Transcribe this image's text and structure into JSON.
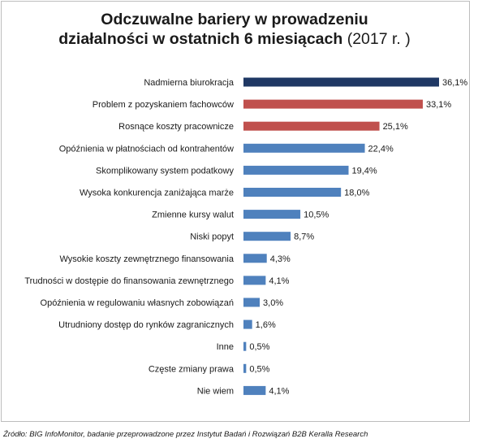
{
  "chart_data": {
    "type": "bar",
    "orientation": "horizontal",
    "title_line1": "Odczuwalne bariery w prowadzeniu",
    "title_line2": "działalności w ostatnich 6 miesiącach",
    "title_suffix": "(2017 r. )",
    "categories": [
      "Nadmierna biurokracja",
      "Problem z pozyskaniem fachowców",
      "Rosnące koszty pracownicze",
      "Opóźnienia w płatnościach od kontrahentów",
      "Skomplikowany system podatkowy",
      "Wysoka konkurencja zaniżająca marże",
      "Zmienne kursy walut",
      "Niski popyt",
      "Wysokie koszty zewnętrznego finansowania",
      "Trudności w dostępie do finansowania zewnętrznego",
      "Opóźnienia w regulowaniu własnych zobowiązań",
      "Utrudniony dostęp do rynków zagranicznych",
      "Inne",
      "Częste zmiany prawa",
      "Nie wiem"
    ],
    "values": [
      36.1,
      33.1,
      25.1,
      22.4,
      19.4,
      18.0,
      10.5,
      8.7,
      4.3,
      4.1,
      3.0,
      1.6,
      0.5,
      0.5,
      4.1
    ],
    "value_labels": [
      "36,1%",
      "33,1%",
      "25,1%",
      "22,4%",
      "19,4%",
      "18,0%",
      "10,5%",
      "8,7%",
      "4,3%",
      "4,1%",
      "3,0%",
      "1,6%",
      "0,5%",
      "0,5%",
      "4,1%"
    ],
    "bar_colors": [
      "#1f3864",
      "#c0504d",
      "#c0504d",
      "#4f81bd",
      "#4f81bd",
      "#4f81bd",
      "#4f81bd",
      "#4f81bd",
      "#4f81bd",
      "#4f81bd",
      "#4f81bd",
      "#4f81bd",
      "#4f81bd",
      "#4f81bd",
      "#4f81bd"
    ],
    "xlim": [
      0,
      36.1
    ],
    "grid": false,
    "legend": "none"
  },
  "source": "Źródło: BIG InfoMonitor, badanie przeprowadzone przez Instytut Badań i Rozwiązań B2B Keralla Research"
}
